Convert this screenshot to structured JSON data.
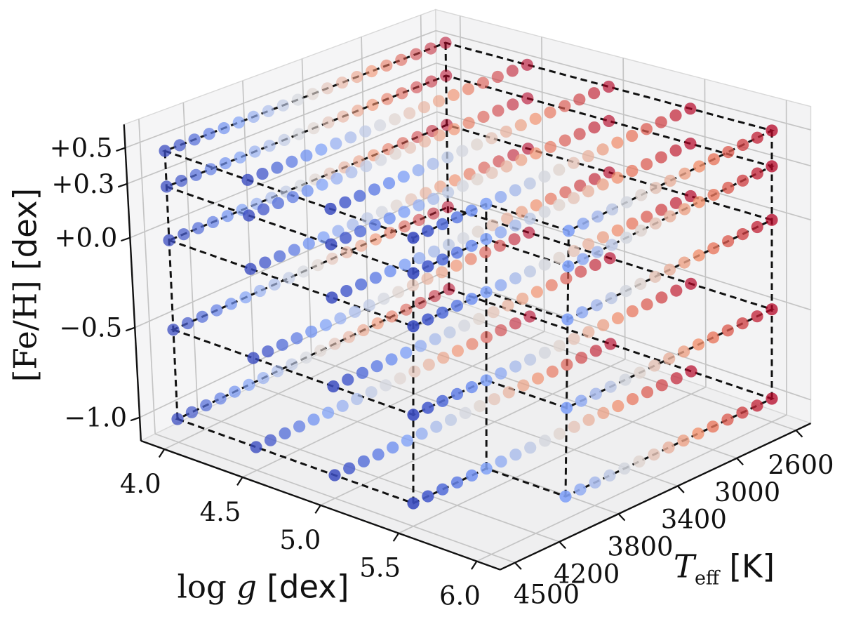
{
  "figure": {
    "background": "#ffffff",
    "description": "3D scatter plot of a stellar model-atmosphere grid in Teff, log g and [Fe/H]"
  },
  "chart_data": {
    "type": "scatter",
    "projection": "3d",
    "title": "",
    "axes": {
      "x": {
        "label": "log g [dex]",
        "label_prefix": "log ",
        "label_symbol": "g",
        "label_unit": " [dex]",
        "ticks": [
          4.0,
          4.5,
          5.0,
          5.5,
          6.0
        ],
        "tick_labels": [
          "4.0",
          "4.5",
          "5.0",
          "5.5",
          "6.0"
        ],
        "range": [
          3.85,
          6.15
        ]
      },
      "y": {
        "label": "Teff [K]",
        "label_symbol": "T",
        "label_sub": "eff",
        "label_unit": " [K]",
        "ticks": [
          4500,
          4200,
          3800,
          3400,
          3000,
          2600
        ],
        "tick_labels": [
          "4500",
          "4200",
          "3800",
          "3400",
          "3000",
          "2600"
        ],
        "range": [
          4600,
          2500
        ]
      },
      "z": {
        "label": "[Fe/H] [dex]",
        "label_symbol": "[Fe/H]",
        "label_unit": " [dex]",
        "ticks": [
          0.5,
          0.3,
          0.0,
          -0.5,
          -1.0
        ],
        "tick_labels": [
          "+0.5",
          "+0.3",
          "+0.0",
          "−0.5",
          "−1.0"
        ],
        "range": [
          -1.13,
          0.63
        ]
      }
    },
    "grid_points": {
      "teff_step_K": 100,
      "feh_planes_dex": [
        -1.0,
        -0.5,
        0.0,
        0.3,
        0.5
      ],
      "logg_rows": [
        {
          "logg_dex": 4.0,
          "teff_min_K": 2600,
          "teff_max_K": 4500
        },
        {
          "logg_dex": 4.5,
          "teff_min_K": 2600,
          "teff_max_K": 4500
        },
        {
          "logg_dex": 5.0,
          "teff_min_K": 2600,
          "teff_max_K": 4500
        },
        {
          "logg_dex": 5.5,
          "teff_min_K": 2600,
          "teff_max_K": 4500
        },
        {
          "logg_dex": 6.0,
          "teff_min_K": 2600,
          "teff_max_K": 4000
        }
      ],
      "points_per_plane": 95,
      "total_points": 475
    },
    "outline": {
      "style": "dashed black",
      "corners_logg_teff": [
        [
          4.0,
          4500
        ],
        [
          5.5,
          4500
        ],
        [
          5.5,
          4000
        ],
        [
          6.0,
          4000
        ],
        [
          6.0,
          2600
        ],
        [
          4.0,
          2600
        ]
      ],
      "vertical_edges_feh_range": [
        -1.0,
        0.5
      ]
    },
    "colormap": {
      "name": "coolwarm (blue = hot 4500 K, red = cool 2600 K)",
      "hot_color_teff_K": 4500,
      "cool_color_teff_K": 2600,
      "anchors": [
        [
          0,
          "#3B4CC0"
        ],
        [
          0.25,
          "#7C9FF9"
        ],
        [
          0.5,
          "#DDDCDB"
        ],
        [
          0.75,
          "#F28D69"
        ],
        [
          1,
          "#B40426"
        ]
      ]
    },
    "style_colors": {
      "pane_left": "#f5f5f6",
      "pane_right": "#f3f3f4",
      "pane_bottom": "#efeff0",
      "grid_line": "#c4c4c4",
      "pane_edge": "#d8d8d8",
      "spine": "#111111",
      "dashed_line": "#111111",
      "tick_label": "#111111"
    }
  }
}
